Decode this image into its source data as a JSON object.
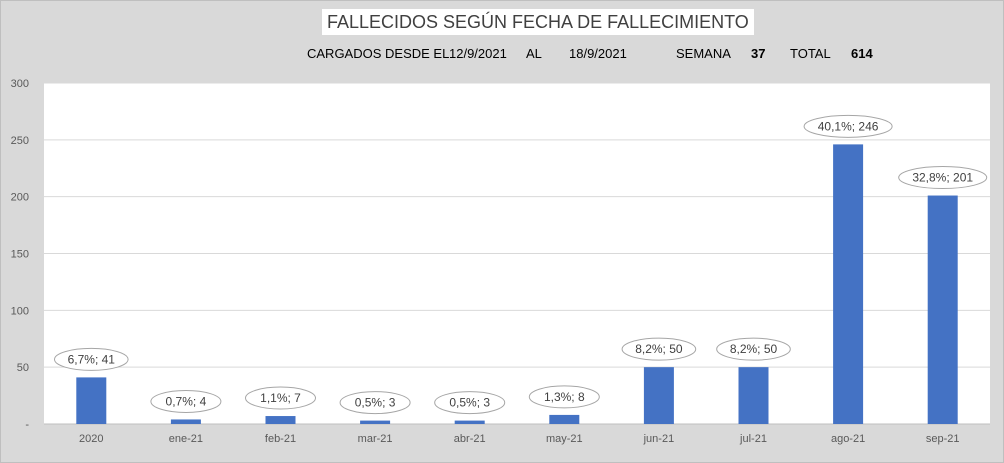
{
  "header": {
    "title": "FALLECIDOS SEGÚN FECHA DE FALLECIMIENTO",
    "loaded_label": "CARGADOS DESDE EL",
    "date_from": "12/9/2021",
    "al_label": "AL",
    "date_to": "18/9/2021",
    "week_label": "SEMANA",
    "week_value": "37",
    "total_label": "TOTAL",
    "total_value": "614"
  },
  "chart_data": {
    "type": "bar",
    "categories": [
      "2020",
      "ene-21",
      "feb-21",
      "mar-21",
      "abr-21",
      "may-21",
      "jun-21",
      "jul-21",
      "ago-21",
      "sep-21"
    ],
    "values": [
      41,
      4,
      7,
      3,
      3,
      8,
      50,
      50,
      246,
      201
    ],
    "data_labels": [
      "6,7%; 41",
      "0,7%; 4",
      "1,1%; 7",
      "0,5%; 3",
      "0,5%; 3",
      "1,3%; 8",
      "8,2%; 50",
      "8,2%; 50",
      "40,1%; 246",
      "32,8%; 201"
    ],
    "yticks": [
      "-",
      "50",
      "100",
      "150",
      "200",
      "250",
      "300"
    ],
    "ylim": [
      0,
      300
    ],
    "grid": true,
    "bar_color": "#4472c4",
    "plot_background": "#ffffff",
    "title": "FALLECIDOS SEGÚN FECHA DE FALLECIMIENTO",
    "xlabel": "",
    "ylabel": ""
  }
}
